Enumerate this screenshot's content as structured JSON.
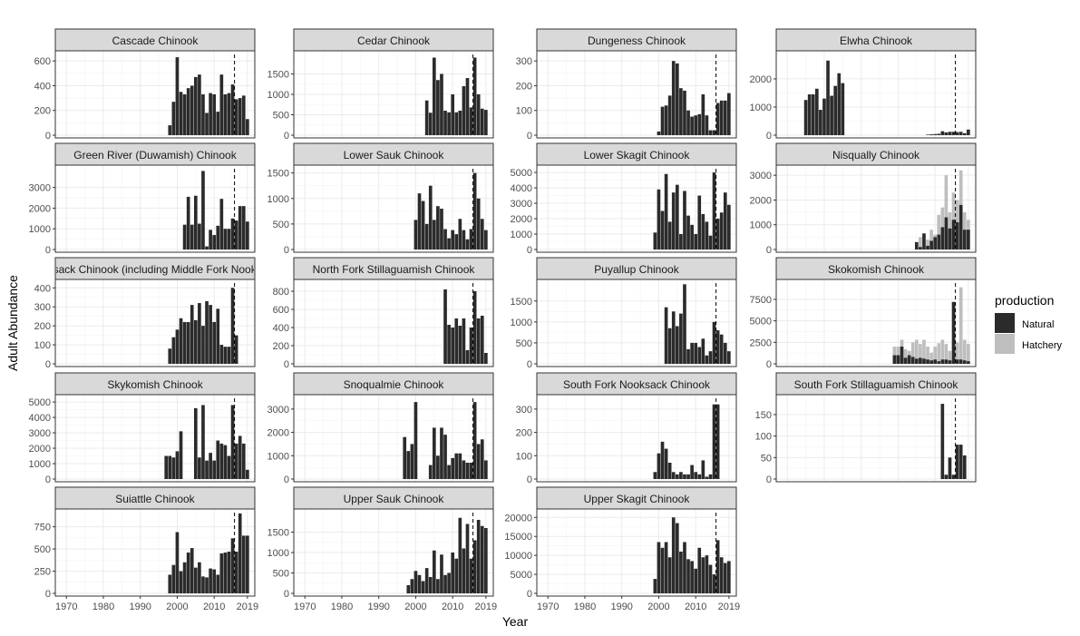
{
  "figure": {
    "ylabel": "Adult Abundance",
    "xlabel": "Year",
    "x_ticks": [
      "1970",
      "1980",
      "1990",
      "2000",
      "2010",
      "2019"
    ],
    "x_tick_values": [
      1970,
      1980,
      1990,
      2000,
      2010,
      2019
    ],
    "xlim": [
      1967,
      2021
    ],
    "legend_title": "production",
    "legend_items": [
      "Natural",
      "Hatchery"
    ],
    "colors": {
      "Natural": "#2b2b2b",
      "Hatchery": "#bebebe",
      "strip": "#d9d9d9",
      "grid": "#ebebeb"
    },
    "vline_year": 2015.5
  },
  "chart_data": [
    {
      "type": "bar",
      "title": "Cascade Chinook",
      "ylim": [
        0,
        660
      ],
      "yticks": [
        0,
        200,
        400,
        600
      ],
      "x": [
        1998,
        1999,
        2000,
        2001,
        2002,
        2003,
        2004,
        2005,
        2006,
        2007,
        2008,
        2009,
        2010,
        2011,
        2012,
        2013,
        2014,
        2015,
        2016,
        2017,
        2018,
        2019
      ],
      "series": [
        {
          "name": "Natural",
          "values": [
            80,
            270,
            630,
            350,
            330,
            380,
            400,
            470,
            490,
            330,
            180,
            340,
            330,
            190,
            490,
            330,
            340,
            410,
            290,
            300,
            320,
            130
          ]
        }
      ]
    },
    {
      "type": "bar",
      "title": "Cedar Chinook",
      "ylim": [
        0,
        2000
      ],
      "yticks": [
        0,
        500,
        1000,
        1500
      ],
      "x": [
        2003,
        2004,
        2005,
        2006,
        2007,
        2008,
        2009,
        2010,
        2011,
        2012,
        2013,
        2014,
        2015,
        2016,
        2017,
        2018,
        2019
      ],
      "series": [
        {
          "name": "Natural",
          "values": [
            850,
            550,
            1900,
            1350,
            1500,
            600,
            560,
            1000,
            560,
            600,
            1200,
            1400,
            680,
            1900,
            1000,
            650,
            620
          ]
        }
      ]
    },
    {
      "type": "bar",
      "title": "Dungeness Chinook",
      "ylim": [
        0,
        330
      ],
      "yticks": [
        0,
        100,
        200,
        300
      ],
      "x": [
        2000,
        2001,
        2002,
        2003,
        2004,
        2005,
        2006,
        2007,
        2008,
        2009,
        2010,
        2011,
        2012,
        2013,
        2014,
        2015,
        2016,
        2017,
        2018,
        2019
      ],
      "series": [
        {
          "name": "Natural",
          "values": [
            15,
            115,
            120,
            160,
            300,
            290,
            190,
            180,
            100,
            75,
            80,
            85,
            165,
            80,
            20,
            20,
            130,
            140,
            140,
            170
          ]
        }
      ]
    },
    {
      "type": "bar",
      "title": "Elwha Chinook",
      "ylim": [
        0,
        2900
      ],
      "yticks": [
        0,
        1000,
        2000
      ],
      "x": [
        1975,
        1976,
        1977,
        1978,
        1979,
        1980,
        1981,
        1982,
        1983,
        1984,
        1985,
        2008,
        2009,
        2010,
        2011,
        2012,
        2013,
        2014,
        2015,
        2016,
        2017,
        2018,
        2019
      ],
      "series": [
        {
          "name": "Natural",
          "values": [
            1250,
            1450,
            1450,
            1650,
            900,
            1300,
            2650,
            1400,
            1750,
            2200,
            1850,
            20,
            30,
            40,
            50,
            140,
            100,
            120,
            120,
            110,
            120,
            70,
            200
          ]
        }
      ]
    },
    {
      "type": "bar",
      "title": "Green River (Duwamish) Chinook",
      "ylim": [
        0,
        3950
      ],
      "yticks": [
        0,
        1000,
        2000,
        3000
      ],
      "x": [
        2002,
        2003,
        2004,
        2005,
        2006,
        2007,
        2008,
        2009,
        2010,
        2011,
        2012,
        2013,
        2014,
        2015,
        2016,
        2017,
        2018,
        2019
      ],
      "series": [
        {
          "name": "Natural",
          "values": [
            1200,
            2550,
            1200,
            2600,
            1250,
            3800,
            150,
            950,
            700,
            1150,
            2450,
            1000,
            1000,
            1500,
            1400,
            2100,
            2100,
            1350
          ]
        }
      ]
    },
    {
      "type": "bar",
      "title": "Lower Sauk Chinook",
      "ylim": [
        0,
        1600
      ],
      "yticks": [
        0,
        500,
        1000,
        1500
      ],
      "x": [
        2000,
        2001,
        2002,
        2003,
        2004,
        2005,
        2006,
        2007,
        2008,
        2009,
        2010,
        2011,
        2012,
        2013,
        2014,
        2015,
        2016,
        2017,
        2018,
        2019
      ],
      "series": [
        {
          "name": "Natural",
          "values": [
            580,
            1100,
            950,
            500,
            1250,
            580,
            850,
            800,
            400,
            220,
            380,
            300,
            600,
            380,
            200,
            400,
            1500,
            1000,
            600,
            380
          ]
        }
      ]
    },
    {
      "type": "bar",
      "title": "Lower Skagit Chinook",
      "ylim": [
        0,
        5300
      ],
      "yticks": [
        0,
        1000,
        2000,
        3000,
        4000,
        5000
      ],
      "x": [
        1999,
        2000,
        2001,
        2002,
        2003,
        2004,
        2005,
        2006,
        2007,
        2008,
        2009,
        2010,
        2011,
        2012,
        2013,
        2014,
        2015,
        2016,
        2017,
        2018,
        2019
      ],
      "series": [
        {
          "name": "Natural",
          "values": [
            1100,
            3900,
            2500,
            4900,
            1800,
            3700,
            4200,
            1000,
            3800,
            2200,
            1600,
            1000,
            3500,
            2300,
            1800,
            900,
            5000,
            2000,
            2400,
            3700,
            2900
          ]
        }
      ]
    },
    {
      "type": "bar",
      "title": "Nisqually Chinook",
      "ylim": [
        0,
        3300
      ],
      "yticks": [
        0,
        1000,
        2000,
        3000
      ],
      "x": [
        2005,
        2006,
        2007,
        2008,
        2009,
        2010,
        2011,
        2012,
        2013,
        2014,
        2015,
        2016,
        2017,
        2018,
        2019
      ],
      "series": [
        {
          "name": "Natural",
          "values": [
            300,
            100,
            650,
            150,
            350,
            500,
            600,
            900,
            1300,
            850,
            1200,
            1100,
            1800,
            800,
            800
          ]
        },
        {
          "name": "Hatchery",
          "values": [
            0,
            500,
            0,
            400,
            800,
            600,
            1400,
            1700,
            3000,
            1500,
            2300,
            2000,
            3200,
            1500,
            1200
          ]
        }
      ]
    },
    {
      "type": "bar",
      "title": "Nooksack Chinook (including Middle Fork Nooksack)",
      "ylim": [
        0,
        430
      ],
      "yticks": [
        0,
        100,
        200,
        300,
        400
      ],
      "x": [
        1998,
        1999,
        2000,
        2001,
        2002,
        2003,
        2004,
        2005,
        2006,
        2007,
        2008,
        2009,
        2010,
        2011,
        2012,
        2013,
        2014,
        2015,
        2016,
        2017,
        2018,
        2019
      ],
      "series": [
        {
          "name": "Natural",
          "values": [
            80,
            140,
            180,
            240,
            220,
            220,
            310,
            230,
            320,
            200,
            330,
            310,
            220,
            290,
            100,
            90,
            90,
            400,
            150,
            0,
            0,
            0
          ]
        }
      ]
    },
    {
      "type": "bar",
      "title": "North Fork Stillaguamish Chinook",
      "ylim": [
        0,
        900
      ],
      "yticks": [
        0,
        200,
        400,
        600,
        800
      ],
      "x": [
        2008,
        2009,
        2010,
        2011,
        2012,
        2013,
        2014,
        2015,
        2016,
        2017,
        2018,
        2019
      ],
      "series": [
        {
          "name": "Natural",
          "values": [
            820,
            430,
            400,
            500,
            420,
            500,
            150,
            400,
            800,
            500,
            530,
            120
          ]
        }
      ]
    },
    {
      "type": "bar",
      "title": "Puyallup Chinook",
      "ylim": [
        0,
        1950
      ],
      "yticks": [
        0,
        500,
        1000,
        1500
      ],
      "x": [
        2002,
        2003,
        2004,
        2005,
        2006,
        2007,
        2008,
        2009,
        2010,
        2011,
        2012,
        2013,
        2014,
        2015,
        2016,
        2017,
        2018,
        2019
      ],
      "series": [
        {
          "name": "Natural",
          "values": [
            1350,
            850,
            1250,
            900,
            1200,
            1900,
            350,
            500,
            500,
            400,
            600,
            200,
            300,
            1000,
            800,
            700,
            500,
            300
          ]
        }
      ]
    },
    {
      "type": "bar",
      "title": "Skokomish Chinook",
      "ylim": [
        0,
        9500
      ],
      "yticks": [
        0,
        2500,
        5000,
        7500
      ],
      "x": [
        1999,
        2000,
        2001,
        2002,
        2003,
        2004,
        2005,
        2006,
        2007,
        2008,
        2009,
        2010,
        2011,
        2012,
        2013,
        2014,
        2015,
        2016,
        2017,
        2018,
        2019
      ],
      "series": [
        {
          "name": "Natural",
          "values": [
            1000,
            1000,
            2000,
            700,
            1000,
            800,
            600,
            700,
            600,
            500,
            400,
            500,
            300,
            500,
            500,
            400,
            7200,
            500,
            500,
            400,
            300
          ]
        },
        {
          "name": "Hatchery",
          "values": [
            2000,
            2000,
            2800,
            1700,
            1500,
            2500,
            2800,
            2300,
            2800,
            2000,
            1300,
            2000,
            2400,
            2800,
            2300,
            1500,
            2600,
            2500,
            8900,
            2800,
            2300
          ]
        }
      ]
    },
    {
      "type": "bar",
      "title": "Skykomish Chinook",
      "ylim": [
        0,
        5300
      ],
      "yticks": [
        0,
        1000,
        2000,
        3000,
        4000,
        5000
      ],
      "x": [
        1997,
        1998,
        1999,
        2000,
        2001,
        2005,
        2006,
        2007,
        2008,
        2009,
        2010,
        2011,
        2012,
        2013,
        2014,
        2015,
        2016,
        2017,
        2018,
        2019
      ],
      "series": [
        {
          "name": "Natural",
          "values": [
            1500,
            1500,
            1400,
            1800,
            3100,
            4600,
            1400,
            4800,
            1200,
            1700,
            1200,
            2500,
            2300,
            2200,
            1500,
            4800,
            2300,
            2800,
            2300,
            600
          ]
        }
      ]
    },
    {
      "type": "bar",
      "title": "Snoqualmie Chinook",
      "ylim": [
        0,
        3500
      ],
      "yticks": [
        0,
        1000,
        2000,
        3000
      ],
      "x": [
        1997,
        1998,
        1999,
        2000,
        2004,
        2005,
        2006,
        2007,
        2008,
        2009,
        2010,
        2011,
        2012,
        2013,
        2014,
        2015,
        2016,
        2017,
        2018,
        2019
      ],
      "series": [
        {
          "name": "Natural",
          "values": [
            1800,
            1200,
            1500,
            3300,
            600,
            2200,
            1000,
            2200,
            1900,
            600,
            900,
            1100,
            1100,
            800,
            700,
            700,
            3300,
            1500,
            1700,
            800
          ]
        }
      ]
    },
    {
      "type": "bar",
      "title": "South Fork Nooksack Chinook",
      "ylim": [
        0,
        350
      ],
      "yticks": [
        0,
        100,
        200,
        300
      ],
      "x": [
        1999,
        2000,
        2001,
        2002,
        2003,
        2004,
        2005,
        2006,
        2007,
        2008,
        2009,
        2010,
        2011,
        2012,
        2013,
        2014,
        2015,
        2016
      ],
      "series": [
        {
          "name": "Natural",
          "values": [
            30,
            110,
            160,
            130,
            70,
            30,
            20,
            30,
            20,
            20,
            60,
            30,
            20,
            80,
            10,
            20,
            320,
            320
          ]
        }
      ]
    },
    {
      "type": "bar",
      "title": "South Fork Stillaguamish Chinook",
      "ylim": [
        0,
        190
      ],
      "yticks": [
        0,
        50,
        100,
        150
      ],
      "x": [
        2012,
        2013,
        2014,
        2015,
        2016,
        2017,
        2018
      ],
      "series": [
        {
          "name": "Natural",
          "values": [
            175,
            10,
            50,
            10,
            80,
            80,
            55
          ]
        }
      ]
    },
    {
      "type": "bar",
      "title": "Suiattle Chinook",
      "ylim": [
        0,
        920
      ],
      "yticks": [
        0,
        250,
        500,
        750
      ],
      "x": [
        1998,
        1999,
        2000,
        2001,
        2002,
        2003,
        2004,
        2005,
        2006,
        2007,
        2008,
        2009,
        2010,
        2011,
        2012,
        2013,
        2014,
        2015,
        2016,
        2017,
        2018,
        2019
      ],
      "series": [
        {
          "name": "Natural",
          "values": [
            210,
            320,
            690,
            250,
            350,
            460,
            510,
            290,
            350,
            190,
            180,
            280,
            270,
            210,
            450,
            460,
            470,
            620,
            470,
            900,
            650,
            650
          ]
        }
      ]
    },
    {
      "type": "bar",
      "title": "Upper Sauk Chinook",
      "ylim": [
        0,
        2000
      ],
      "yticks": [
        0,
        500,
        1000,
        1500
      ],
      "x": [
        1998,
        1999,
        2000,
        2001,
        2002,
        2003,
        2004,
        2005,
        2006,
        2007,
        2008,
        2009,
        2010,
        2011,
        2012,
        2013,
        2014,
        2015,
        2016,
        2017,
        2018,
        2019
      ],
      "series": [
        {
          "name": "Natural",
          "values": [
            200,
            350,
            550,
            450,
            300,
            620,
            400,
            1050,
            350,
            950,
            450,
            500,
            1000,
            850,
            1850,
            1100,
            1700,
            850,
            1300,
            1800,
            1650,
            1600
          ]
        }
      ]
    },
    {
      "type": "bar",
      "title": "Upper Skagit Chinook",
      "ylim": [
        0,
        21500
      ],
      "yticks": [
        0,
        5000,
        10000,
        15000,
        20000
      ],
      "x": [
        1999,
        2000,
        2001,
        2002,
        2003,
        2004,
        2005,
        2006,
        2007,
        2008,
        2009,
        2010,
        2011,
        2012,
        2013,
        2014,
        2015,
        2016,
        2017,
        2018,
        2019
      ],
      "series": [
        {
          "name": "Natural",
          "values": [
            3800,
            13500,
            12000,
            13500,
            9500,
            20000,
            18500,
            11000,
            13500,
            9000,
            8500,
            6500,
            12000,
            9500,
            10000,
            7500,
            5000,
            14000,
            9500,
            8000,
            8500
          ]
        }
      ]
    }
  ]
}
